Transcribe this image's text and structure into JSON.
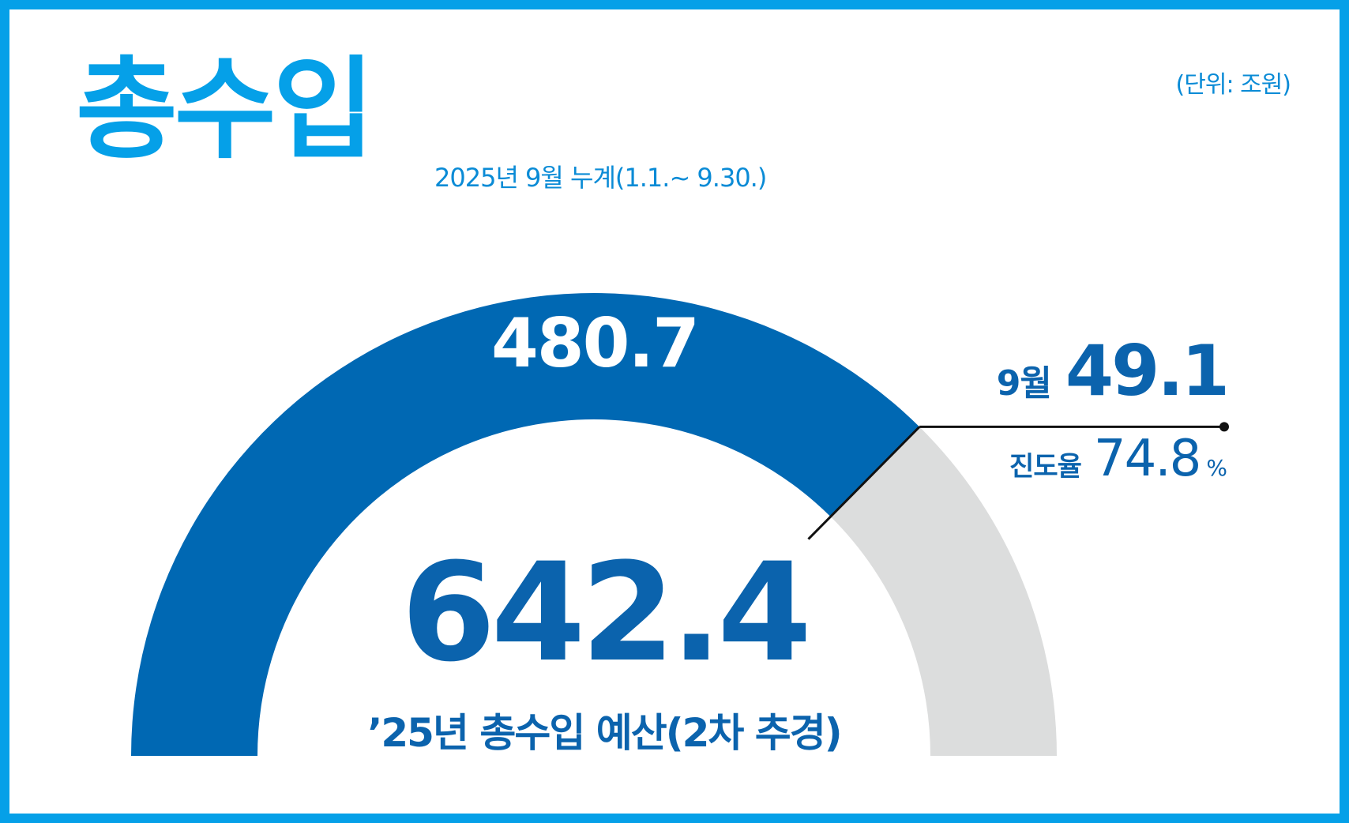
{
  "colors": {
    "frame": "#05a0e8",
    "title": "#05a0e8",
    "achieved_arc": "#0068b3",
    "remaining_arc": "#dcdddd",
    "text_dark_blue": "#0b63ad",
    "text_light_blue": "#0a8bd6",
    "leader_line": "#111111"
  },
  "header": {
    "title": "총수입",
    "period": "2025년 9월 누계(1.1.~ 9.30.)",
    "unit": "(단위: 조원)"
  },
  "chart_data": {
    "type": "gauge",
    "total": 642.4,
    "achieved": 480.7,
    "progress_percent": 74.8,
    "labels": {
      "achieved": "480.7",
      "total": "642.4",
      "total_caption": "’25년 총수입 예산(2차 추경)",
      "month_label": "9월",
      "month_value": "49.1",
      "progress_label": "진도율",
      "progress_value": "74.8",
      "progress_unit": "%"
    }
  }
}
